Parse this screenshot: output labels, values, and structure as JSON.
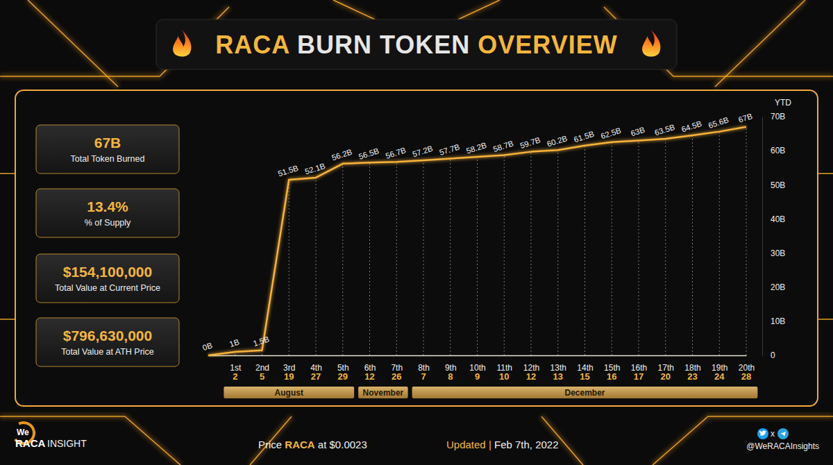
{
  "chart_data": {
    "type": "line",
    "title": "RACA BURN TOKEN OVERVIEW",
    "categories": [
      null,
      "1st",
      "2nd",
      "3rd",
      "4th",
      "5th",
      "6th",
      "7th",
      "8th",
      "9th",
      "10th",
      "11th",
      "12th",
      "13th",
      "14th",
      "15th",
      "16th",
      "17th",
      "18th",
      "19th",
      "20th"
    ],
    "days": [
      null,
      "2",
      "5",
      "19",
      "27",
      "29",
      "12",
      "26",
      "7",
      "8",
      "9",
      "10",
      "12",
      "13",
      "15",
      "16",
      "17",
      "20",
      "23",
      "24",
      "28"
    ],
    "months": [
      null,
      "August",
      "August",
      "August",
      "August",
      "August",
      "November",
      "November",
      "December",
      "December",
      "December",
      "December",
      "December",
      "December",
      "December",
      "December",
      "December",
      "December",
      "December",
      "December",
      "December"
    ],
    "values": [
      0,
      1,
      1.5,
      51.5,
      52.1,
      56.2,
      56.5,
      56.7,
      57.2,
      57.7,
      58.2,
      58.7,
      59.7,
      60.2,
      61.5,
      62.5,
      63,
      63.5,
      64.5,
      65.6,
      67
    ],
    "value_labels": [
      "0B",
      "1B",
      "1.5B",
      "51.5B",
      "52.1B",
      "56.2B",
      "56.5B",
      "56.7B",
      "57.2B",
      "57.7B",
      "58.2B",
      "58.7B",
      "59.7B",
      "60.2B",
      "61.5B",
      "62.5B",
      "63B",
      "63.5B",
      "64.5B",
      "65.6B",
      "67B"
    ],
    "data_labels": true,
    "color": "#f7b23b",
    "ylabel": "YTD",
    "ylim": [
      0,
      70
    ],
    "yticks": [
      0,
      {
        "value": 10,
        "label": "10B"
      },
      {
        "value": 20,
        "label": "20B"
      },
      {
        "value": 30,
        "label": "30B"
      },
      {
        "value": 40,
        "label": "40B"
      },
      {
        "value": 50,
        "label": "50B"
      },
      {
        "value": 60,
        "label": "60B"
      },
      {
        "value": 70,
        "label": "70B"
      }
    ],
    "grid": false
  },
  "stats": [
    {
      "value": "67B",
      "label": "Total Token Burned"
    },
    {
      "value": "13.4%",
      "label": "% of Supply"
    },
    {
      "value": "$154,100,000",
      "label": "Total Value at Current Price"
    },
    {
      "value": "$796,630,000",
      "label": "Total Value at ATH Price"
    }
  ],
  "footer": {
    "price": [
      "Price",
      "RACA",
      "at $0.0023"
    ],
    "updated": [
      "Updated",
      "|",
      "Feb 7th, 2022"
    ],
    "social": [
      "x",
      "@WeRACAInsights"
    ]
  },
  "logo": [
    "We",
    "RACA",
    "INSIGHT"
  ]
}
